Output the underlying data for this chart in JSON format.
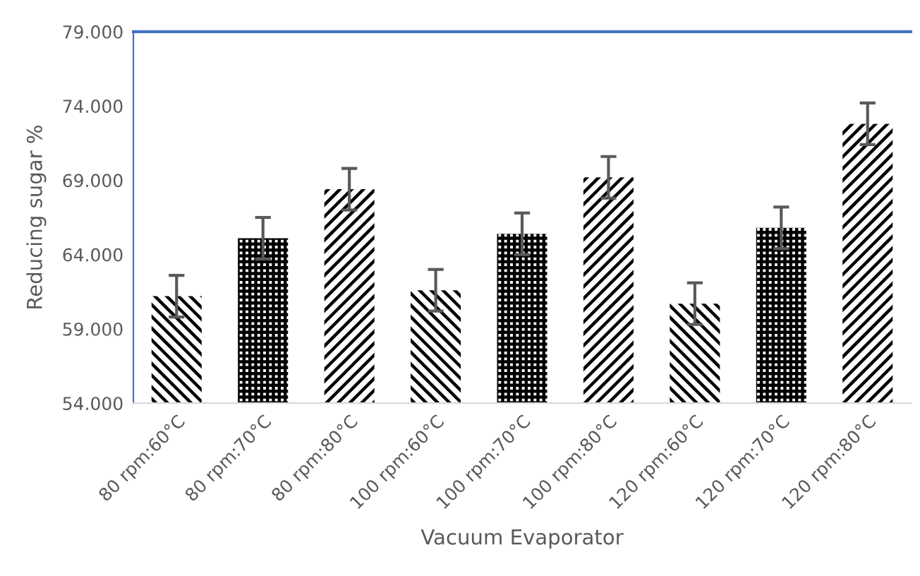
{
  "chart_data": {
    "type": "bar",
    "xlabel": "Vacuum Evaporator",
    "ylabel": "Reducing sugar %",
    "categories": [
      "80 rpm:60°C",
      "80 rpm:70°C",
      "80 rpm:80°C",
      "100 rpm:60°C",
      "100 rpm:70°C",
      "100 rpm:80°C",
      "120 rpm:60°C",
      "120 rpm:70°C",
      "120 rpm:80°C"
    ],
    "values": [
      61.2,
      65.1,
      68.4,
      61.6,
      65.4,
      69.2,
      60.7,
      65.8,
      72.8
    ],
    "errors": [
      1.4,
      1.4,
      1.4,
      1.4,
      1.4,
      1.4,
      1.4,
      1.4,
      1.4
    ],
    "color": "#000000",
    "ylim": [
      54,
      79
    ],
    "yticks": [
      {
        "value": 54,
        "label": "54.000"
      },
      {
        "value": 59,
        "label": "59.000"
      },
      {
        "value": 64,
        "label": "64.000"
      },
      {
        "value": 69,
        "label": "69.000"
      },
      {
        "value": 74,
        "label": "74.000"
      },
      {
        "value": 79,
        "label": "79.000"
      }
    ],
    "grid": false
  }
}
